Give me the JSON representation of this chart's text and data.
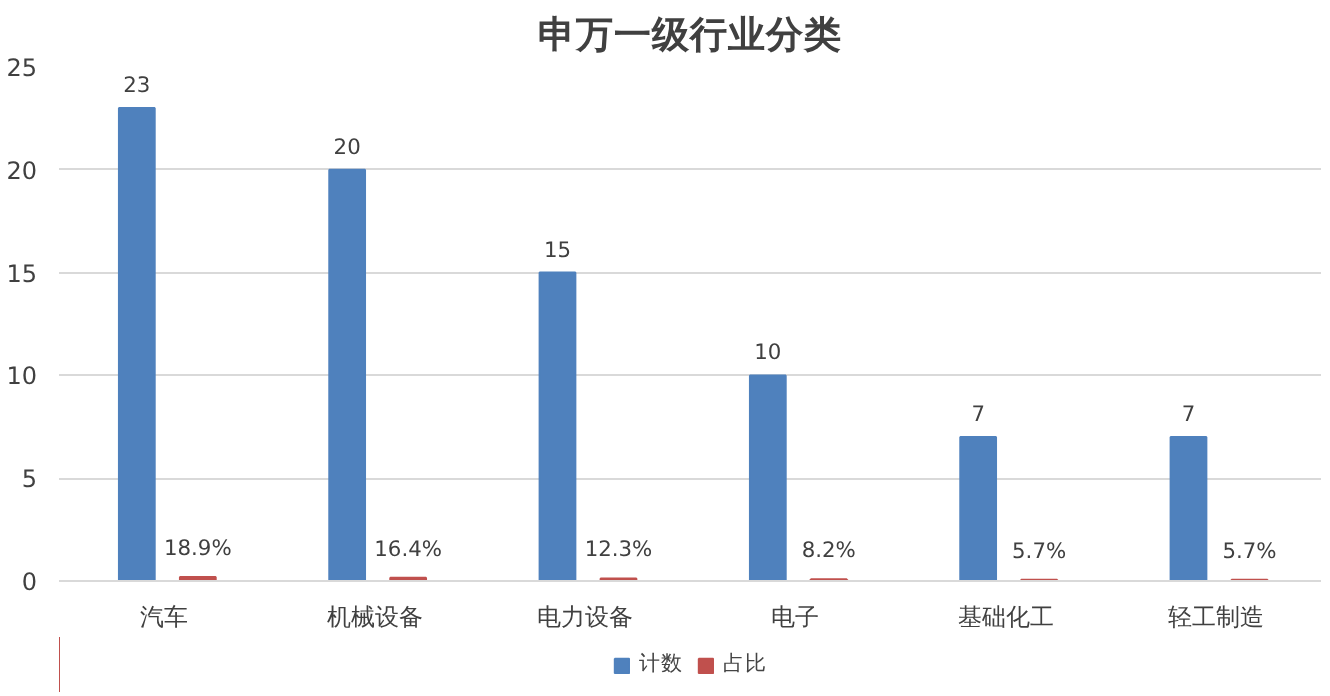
{
  "chart_data": {
    "type": "bar",
    "title": "申万一级行业分类",
    "categories": [
      "汽车",
      "机械设备",
      "电力设备",
      "电子",
      "基础化工",
      "轻工制造"
    ],
    "series": [
      {
        "name": "计数",
        "color": "#4f81bd",
        "values": [
          23,
          20,
          15,
          10,
          7,
          7
        ]
      },
      {
        "name": "占比",
        "color": "#c0504d",
        "values": [
          0.189,
          0.164,
          0.123,
          0.082,
          0.057,
          0.057
        ],
        "value_labels": [
          "18.9%",
          "16.4%",
          "12.3%",
          "8.2%",
          "5.7%",
          "5.7%"
        ]
      }
    ],
    "data_labels": true,
    "ylim": [
      0,
      25
    ],
    "yticks": [
      0,
      5,
      10,
      15,
      20,
      25
    ],
    "grid": "y",
    "legend": "bottom"
  }
}
